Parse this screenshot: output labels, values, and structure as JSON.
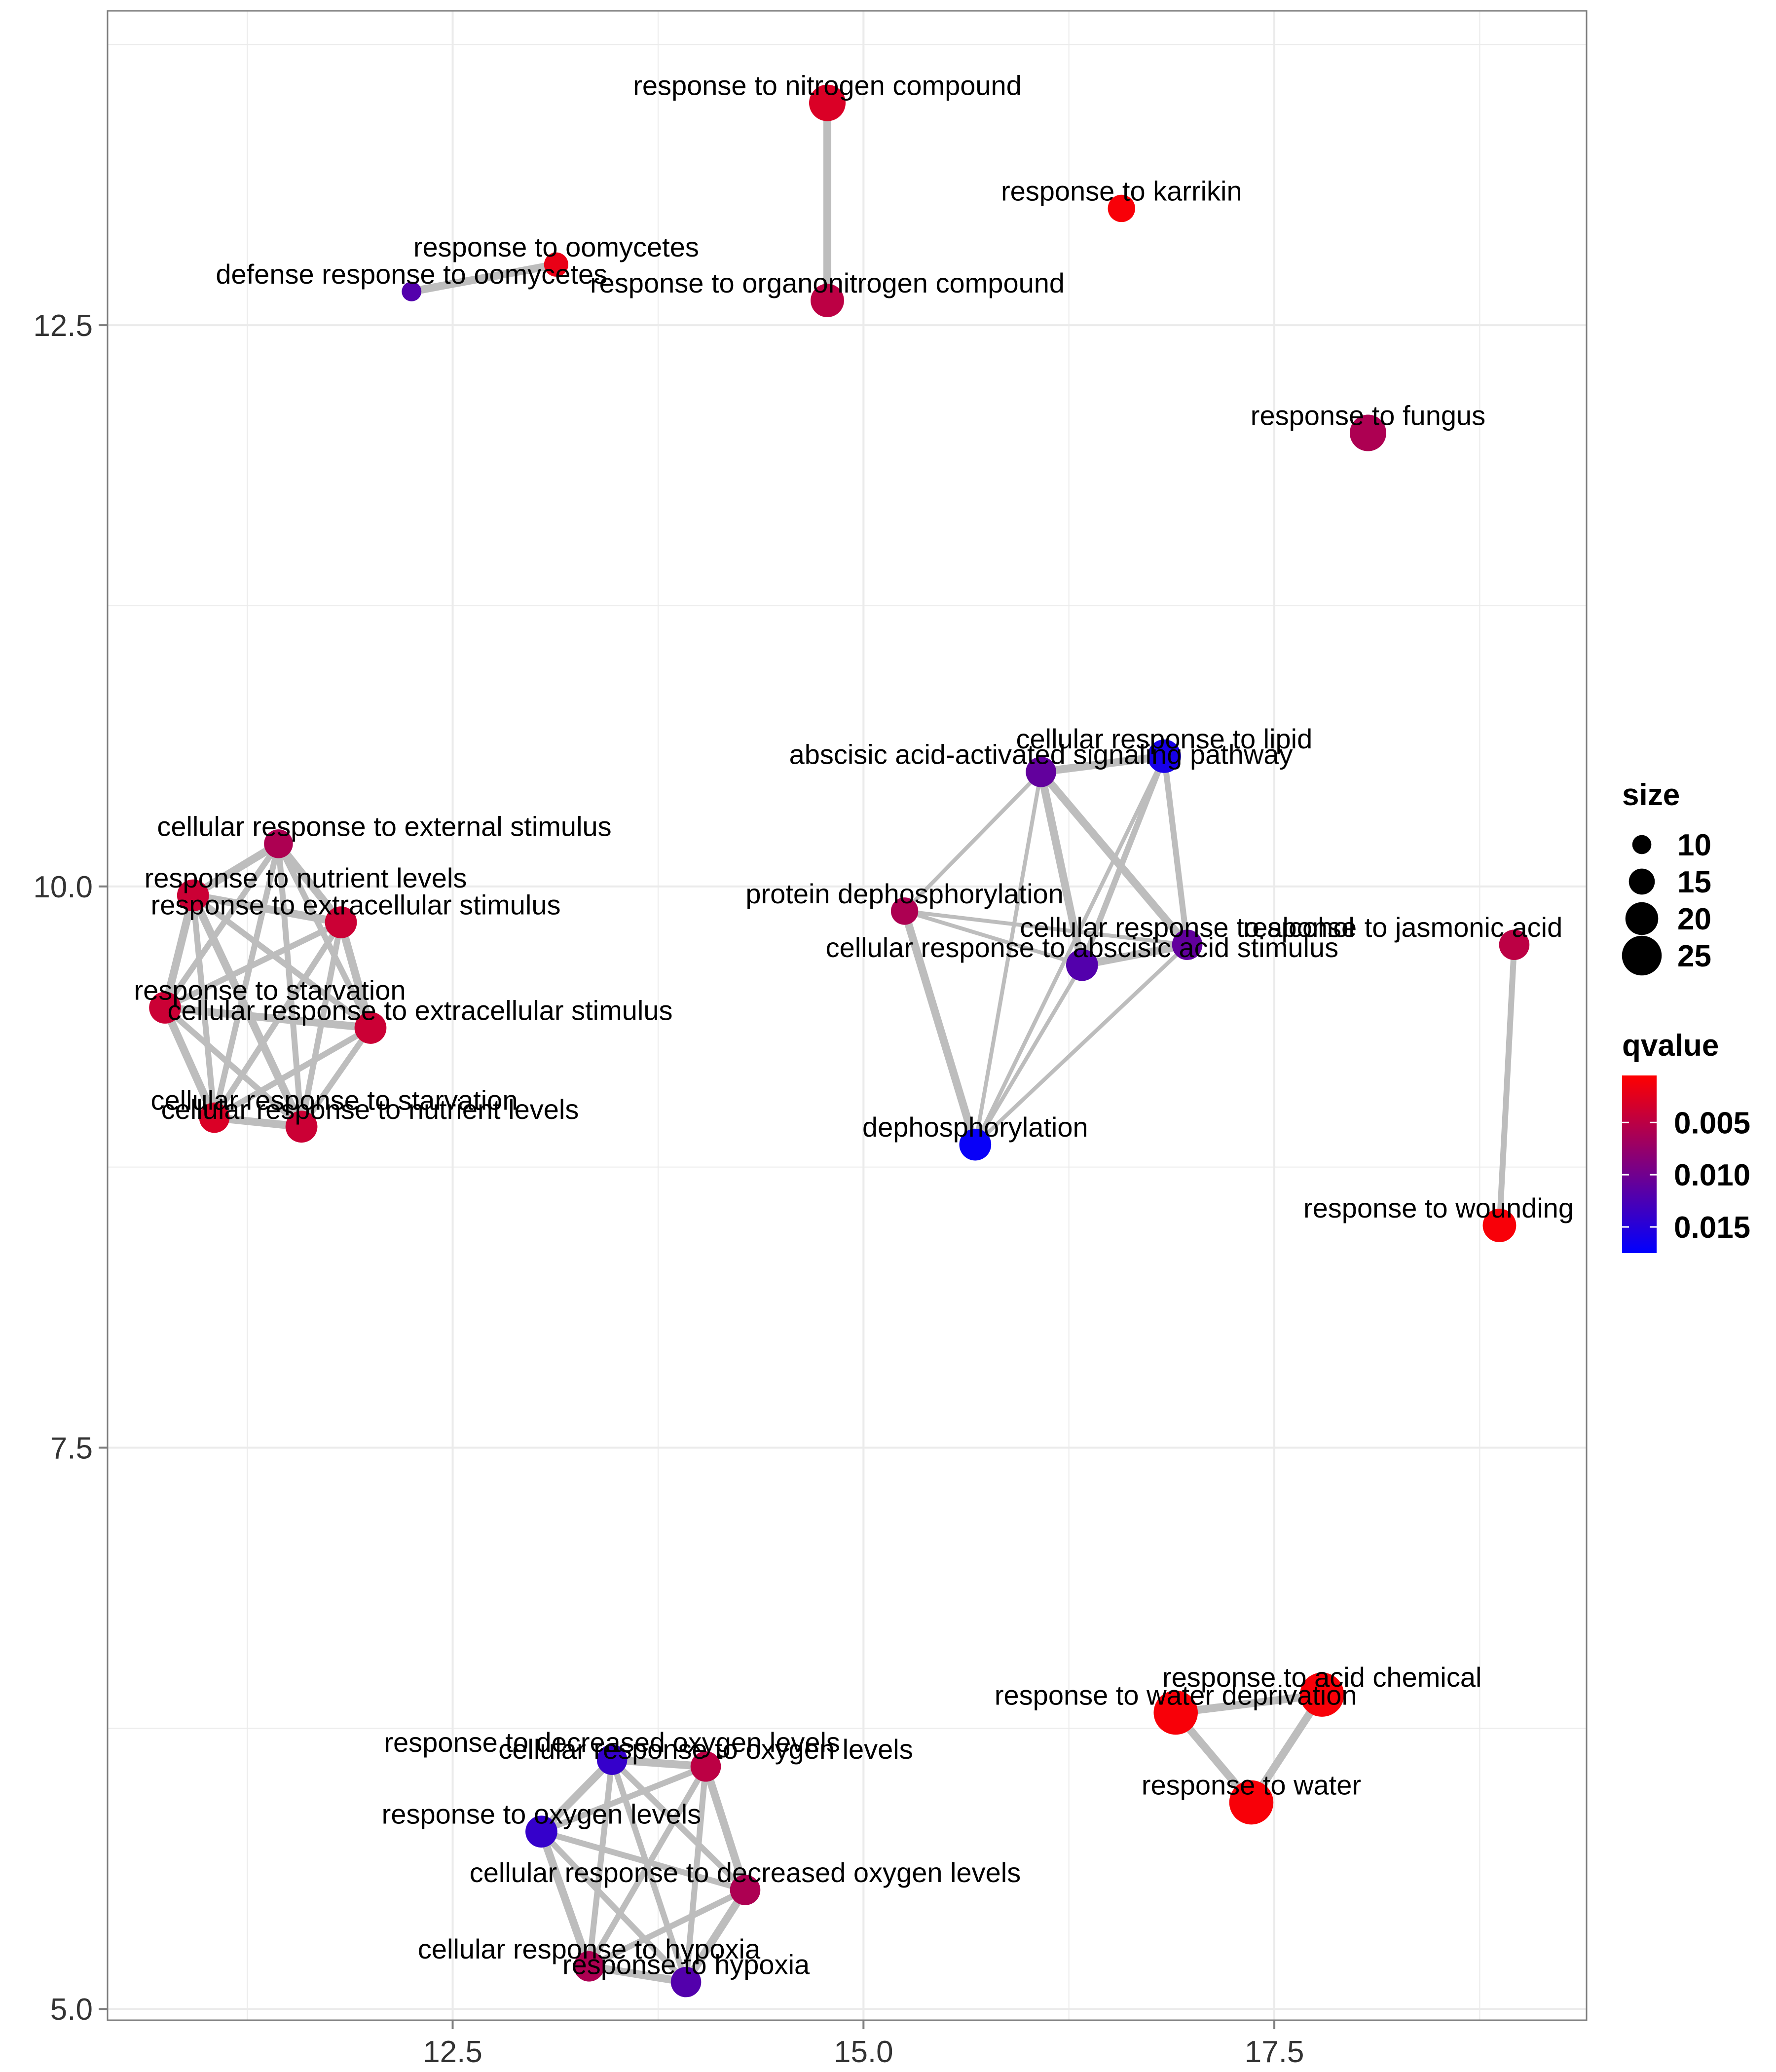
{
  "chart_data": {
    "type": "scatter",
    "subtype": "enrichment-network",
    "xlim": [
      10.4,
      19.4
    ],
    "ylim": [
      4.95,
      13.9
    ],
    "x_ticks": [
      12.5,
      15.0,
      17.5
    ],
    "x_tick_labels": [
      "12.5",
      "15.0",
      "17.5"
    ],
    "y_ticks": [
      5.0,
      7.5,
      10.0,
      12.5
    ],
    "y_tick_labels": [
      "5.0",
      "7.5",
      "10.0",
      "12.5"
    ],
    "grid": true,
    "legend_position": "right",
    "nodes": [
      {
        "label": "response to nitrogen compound",
        "x": 14.78,
        "y": 13.49,
        "size": 20,
        "qvalue": 0.003
      },
      {
        "label": "response to karrikin",
        "x": 16.57,
        "y": 13.02,
        "size": 14,
        "qvalue": 0.001
      },
      {
        "label": "response to oomycetes",
        "x": 13.13,
        "y": 12.77,
        "size": 12,
        "qvalue": 0.002
      },
      {
        "label": "defense response to oomycetes",
        "x": 12.25,
        "y": 12.65,
        "size": 9,
        "qvalue": 0.012
      },
      {
        "label": "response to organonitrogen compound",
        "x": 14.78,
        "y": 12.61,
        "size": 18,
        "qvalue": 0.005
      },
      {
        "label": "response to fungus",
        "x": 18.07,
        "y": 12.02,
        "size": 20,
        "qvalue": 0.006
      },
      {
        "label": "cellular response to lipid",
        "x": 16.83,
        "y": 10.58,
        "size": 18,
        "qvalue": 0.016
      },
      {
        "label": "abscisic acid-activated signaling pathway",
        "x": 16.08,
        "y": 10.51,
        "size": 16,
        "qvalue": 0.011
      },
      {
        "label": "cellular response to external stimulus",
        "x": 11.44,
        "y": 10.19,
        "size": 15,
        "qvalue": 0.006
      },
      {
        "label": "response to nutrient levels",
        "x": 10.92,
        "y": 9.96,
        "size": 17,
        "qvalue": 0.004
      },
      {
        "label": "protein dephosphorylation",
        "x": 15.25,
        "y": 9.89,
        "size": 14,
        "qvalue": 0.006
      },
      {
        "label": "response to extracellular stimulus",
        "x": 11.82,
        "y": 9.84,
        "size": 17,
        "qvalue": 0.004
      },
      {
        "label": "cellular response to alcohol",
        "x": 16.97,
        "y": 9.74,
        "size": 16,
        "qvalue": 0.011
      },
      {
        "label": "response to jasmonic acid",
        "x": 18.96,
        "y": 9.74,
        "size": 16,
        "qvalue": 0.005
      },
      {
        "label": "cellular response to abscisic acid stimulus",
        "x": 16.33,
        "y": 9.65,
        "size": 17,
        "qvalue": 0.012
      },
      {
        "label": "response to starvation",
        "x": 10.75,
        "y": 9.46,
        "size": 17,
        "qvalue": 0.004
      },
      {
        "label": "cellular response to extracellular stimulus",
        "x": 12.0,
        "y": 9.37,
        "size": 17,
        "qvalue": 0.004
      },
      {
        "label": "cellular response to starvation",
        "x": 11.05,
        "y": 8.97,
        "size": 16,
        "qvalue": 0.003
      },
      {
        "label": "cellular response to nutrient levels",
        "x": 11.58,
        "y": 8.93,
        "size": 17,
        "qvalue": 0.004
      },
      {
        "label": "dephosphorylation",
        "x": 15.68,
        "y": 8.85,
        "size": 17,
        "qvalue": 0.017
      },
      {
        "label": "response to wounding",
        "x": 18.87,
        "y": 8.49,
        "size": 18,
        "qvalue": 0.001
      },
      {
        "label": "response to acid chemical",
        "x": 17.79,
        "y": 6.4,
        "size": 25,
        "qvalue": 0.001
      },
      {
        "label": "response to water deprivation",
        "x": 16.9,
        "y": 6.32,
        "size": 25,
        "qvalue": 0.001
      },
      {
        "label": "response to decreased oxygen levels",
        "x": 13.47,
        "y": 6.11,
        "size": 16,
        "qvalue": 0.014
      },
      {
        "label": "cellular response to oxygen levels",
        "x": 14.04,
        "y": 6.08,
        "size": 16,
        "qvalue": 0.005
      },
      {
        "label": "response to oxygen levels",
        "x": 13.04,
        "y": 5.79,
        "size": 17,
        "qvalue": 0.014
      },
      {
        "label": "response to water",
        "x": 17.36,
        "y": 5.92,
        "size": 25,
        "qvalue": 0.001
      },
      {
        "label": "cellular response to decreased oxygen levels",
        "x": 14.28,
        "y": 5.53,
        "size": 16,
        "qvalue": 0.006
      },
      {
        "label": "cellular response to hypoxia",
        "x": 13.33,
        "y": 5.19,
        "size": 16,
        "qvalue": 0.006
      },
      {
        "label": "response to hypoxia",
        "x": 13.92,
        "y": 5.12,
        "size": 16,
        "qvalue": 0.012
      }
    ],
    "edges": [
      {
        "source": 0,
        "target": 4,
        "weight": 3
      },
      {
        "source": 2,
        "target": 3,
        "weight": 3
      },
      {
        "source": 13,
        "target": 20,
        "weight": 2
      },
      {
        "source": 6,
        "target": 7,
        "weight": 3
      },
      {
        "source": 6,
        "target": 12,
        "weight": 2
      },
      {
        "source": 6,
        "target": 14,
        "weight": 2
      },
      {
        "source": 6,
        "target": 19,
        "weight": 1
      },
      {
        "source": 7,
        "target": 12,
        "weight": 3
      },
      {
        "source": 7,
        "target": 14,
        "weight": 3
      },
      {
        "source": 7,
        "target": 19,
        "weight": 1
      },
      {
        "source": 7,
        "target": 10,
        "weight": 1
      },
      {
        "source": 10,
        "target": 12,
        "weight": 1
      },
      {
        "source": 10,
        "target": 14,
        "weight": 1
      },
      {
        "source": 10,
        "target": 19,
        "weight": 3
      },
      {
        "source": 12,
        "target": 14,
        "weight": 3
      },
      {
        "source": 12,
        "target": 19,
        "weight": 1
      },
      {
        "source": 14,
        "target": 19,
        "weight": 1
      },
      {
        "source": 8,
        "target": 9,
        "weight": 3
      },
      {
        "source": 8,
        "target": 11,
        "weight": 3
      },
      {
        "source": 8,
        "target": 15,
        "weight": 2
      },
      {
        "source": 8,
        "target": 16,
        "weight": 2
      },
      {
        "source": 8,
        "target": 17,
        "weight": 2
      },
      {
        "source": 8,
        "target": 18,
        "weight": 2
      },
      {
        "source": 9,
        "target": 11,
        "weight": 3
      },
      {
        "source": 9,
        "target": 15,
        "weight": 3
      },
      {
        "source": 9,
        "target": 16,
        "weight": 2
      },
      {
        "source": 9,
        "target": 17,
        "weight": 2
      },
      {
        "source": 9,
        "target": 18,
        "weight": 3
      },
      {
        "source": 11,
        "target": 15,
        "weight": 2
      },
      {
        "source": 11,
        "target": 16,
        "weight": 3
      },
      {
        "source": 11,
        "target": 17,
        "weight": 2
      },
      {
        "source": 11,
        "target": 18,
        "weight": 2
      },
      {
        "source": 15,
        "target": 16,
        "weight": 3
      },
      {
        "source": 15,
        "target": 17,
        "weight": 3
      },
      {
        "source": 15,
        "target": 18,
        "weight": 2
      },
      {
        "source": 16,
        "target": 17,
        "weight": 2
      },
      {
        "source": 16,
        "target": 18,
        "weight": 2
      },
      {
        "source": 17,
        "target": 18,
        "weight": 3
      },
      {
        "source": 21,
        "target": 22,
        "weight": 3
      },
      {
        "source": 21,
        "target": 26,
        "weight": 3
      },
      {
        "source": 22,
        "target": 26,
        "weight": 3
      },
      {
        "source": 23,
        "target": 24,
        "weight": 3
      },
      {
        "source": 23,
        "target": 25,
        "weight": 3
      },
      {
        "source": 23,
        "target": 27,
        "weight": 2
      },
      {
        "source": 23,
        "target": 28,
        "weight": 2
      },
      {
        "source": 23,
        "target": 29,
        "weight": 2
      },
      {
        "source": 24,
        "target": 25,
        "weight": 2
      },
      {
        "source": 24,
        "target": 27,
        "weight": 3
      },
      {
        "source": 24,
        "target": 28,
        "weight": 2
      },
      {
        "source": 24,
        "target": 29,
        "weight": 2
      },
      {
        "source": 25,
        "target": 27,
        "weight": 2
      },
      {
        "source": 25,
        "target": 28,
        "weight": 3
      },
      {
        "source": 25,
        "target": 29,
        "weight": 2
      },
      {
        "source": 27,
        "target": 28,
        "weight": 2
      },
      {
        "source": 27,
        "target": 29,
        "weight": 3
      },
      {
        "source": 28,
        "target": 29,
        "weight": 3
      }
    ],
    "legend": {
      "size_title": "size",
      "size_entries": [
        {
          "label": "10",
          "size": 10
        },
        {
          "label": "15",
          "size": 15
        },
        {
          "label": "20",
          "size": 20
        },
        {
          "label": "25",
          "size": 25
        }
      ],
      "color_title": "qvalue",
      "color_scale": {
        "low_color": "#FF0000",
        "high_color": "#0000FF",
        "min": 0.0005,
        "max": 0.0175
      },
      "color_ticks": [
        {
          "label": "0.005",
          "value": 0.005
        },
        {
          "label": "0.010",
          "value": 0.01
        },
        {
          "label": "0.015",
          "value": 0.015
        }
      ]
    },
    "colors": {
      "edge": "#BDBDBD",
      "grid": "#EBEBEB",
      "border": "#7F7F7F"
    }
  }
}
